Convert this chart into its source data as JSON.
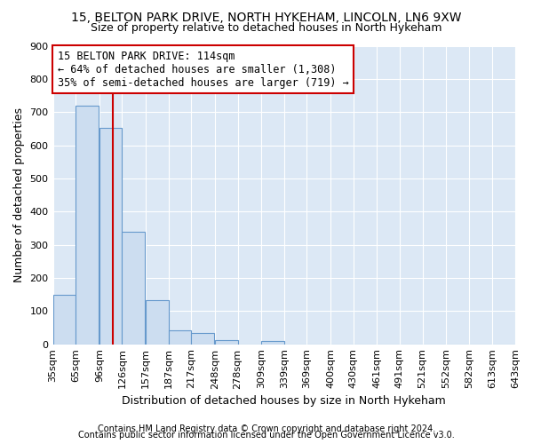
{
  "title1": "15, BELTON PARK DRIVE, NORTH HYKEHAM, LINCOLN, LN6 9XW",
  "title2": "Size of property relative to detached houses in North Hykeham",
  "xlabel": "Distribution of detached houses by size in North Hykeham",
  "ylabel": "Number of detached properties",
  "footer1": "Contains HM Land Registry data © Crown copyright and database right 2024.",
  "footer2": "Contains public sector information licensed under the Open Government Licence v3.0.",
  "bar_left_edges": [
    35,
    65,
    96,
    126,
    157,
    187,
    217,
    248,
    278,
    309,
    339,
    369,
    400,
    430,
    461,
    491,
    521,
    552,
    582,
    613
  ],
  "bar_heights": [
    150,
    718,
    651,
    340,
    132,
    42,
    33,
    12,
    0,
    10,
    0,
    0,
    0,
    0,
    0,
    0,
    0,
    0,
    0,
    0
  ],
  "bar_color": "#ccddf0",
  "bar_edgecolor": "#6699cc",
  "xtick_labels": [
    "35sqm",
    "65sqm",
    "96sqm",
    "126sqm",
    "157sqm",
    "187sqm",
    "217sqm",
    "248sqm",
    "278sqm",
    "309sqm",
    "339sqm",
    "369sqm",
    "400sqm",
    "430sqm",
    "461sqm",
    "491sqm",
    "521sqm",
    "552sqm",
    "582sqm",
    "613sqm",
    "643sqm"
  ],
  "xtick_positions": [
    35,
    65,
    96,
    126,
    157,
    187,
    217,
    248,
    278,
    309,
    339,
    369,
    400,
    430,
    461,
    491,
    521,
    552,
    582,
    613,
    643
  ],
  "ylim": [
    0,
    900
  ],
  "xlim": [
    35,
    643
  ],
  "property_size": 114,
  "vline_color": "#cc0000",
  "annotation_title": "15 BELTON PARK DRIVE: 114sqm",
  "annotation_line1": "← 64% of detached houses are smaller (1,308)",
  "annotation_line2": "35% of semi-detached houses are larger (719) →",
  "annotation_box_edgecolor": "#cc0000",
  "fig_bg_color": "#ffffff",
  "plot_bg_color": "#dce8f5",
  "grid_color": "#ffffff",
  "title_fontsize": 10,
  "subtitle_fontsize": 9,
  "annotation_fontsize": 8.5,
  "axis_label_fontsize": 9,
  "tick_fontsize": 8,
  "footer_fontsize": 7
}
